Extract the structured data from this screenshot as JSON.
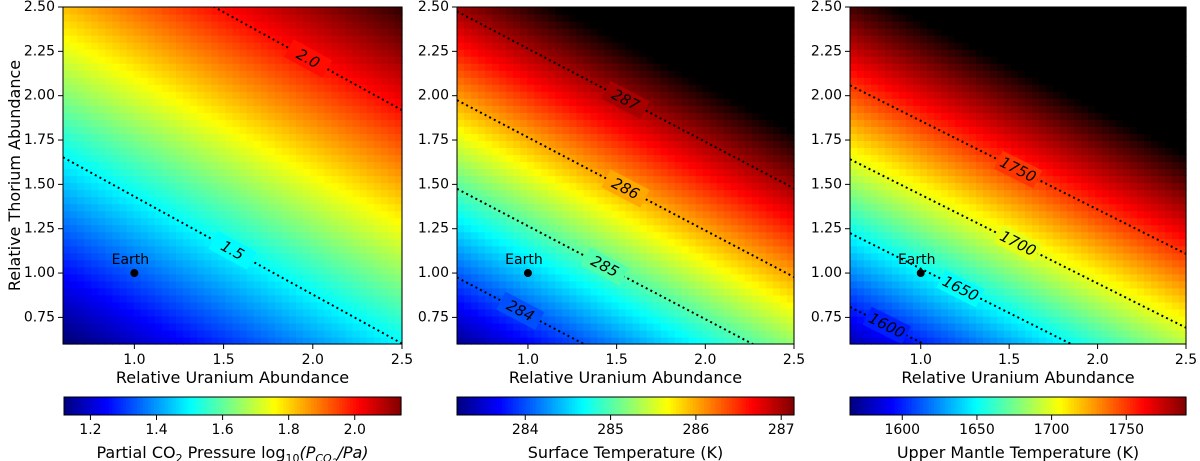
{
  "chart_data": [
    {
      "type": "heatmap",
      "colormap": "jet",
      "xlabel": "Relative Uranium Abundance",
      "ylabel": "Relative Thorium Abundance",
      "xlim": [
        0.6,
        2.5
      ],
      "ylim": [
        0.6,
        2.5
      ],
      "xticks": [
        1.0,
        1.5,
        2.0,
        2.5
      ],
      "yticks": [
        0.75,
        1.0,
        1.25,
        1.5,
        1.75,
        2.0,
        2.25,
        2.5
      ],
      "field": {
        "at_min": 1.1,
        "du": 0.21,
        "dt": 0.38
      },
      "color_range": [
        1.12,
        2.14
      ],
      "contours": [
        {
          "level": 1.5,
          "label": "1.5"
        },
        {
          "level": 2.0,
          "label": "2.0"
        }
      ],
      "colorbar": {
        "label_parts": [
          "Partial CO",
          "2",
          " Pressure log",
          "10",
          "(P",
          "CO",
          "2",
          "/Pa)"
        ],
        "ticks": [
          1.2,
          1.4,
          1.6,
          1.8,
          2.0
        ]
      },
      "earth": {
        "x": 1.0,
        "y": 1.0,
        "label": "Earth"
      }
    },
    {
      "type": "heatmap",
      "colormap": "jet",
      "xlabel": "Relative Uranium Abundance",
      "ylabel": "",
      "xlim": [
        0.6,
        2.5
      ],
      "ylim": [
        0.6,
        2.5
      ],
      "xticks": [
        1.0,
        1.5,
        2.0,
        2.5
      ],
      "yticks": [
        0.75,
        1.0,
        1.25,
        1.5,
        1.75,
        2.0,
        2.25,
        2.5
      ],
      "field": {
        "at_min": 283.25,
        "du": 1.05,
        "dt": 2.0
      },
      "color_range": [
        283.2,
        287.15
      ],
      "contours": [
        {
          "level": 284,
          "label": "284"
        },
        {
          "level": 285,
          "label": "285"
        },
        {
          "level": 286,
          "label": "286"
        },
        {
          "level": 287,
          "label": "287"
        }
      ],
      "colorbar": {
        "label_parts": [
          "Surface Temperature (K)"
        ],
        "ticks": [
          284,
          285,
          286,
          287
        ]
      },
      "earth": {
        "x": 1.0,
        "y": 1.0,
        "label": "Earth"
      }
    },
    {
      "type": "heatmap",
      "colormap": "jet",
      "xlabel": "Relative Uranium Abundance",
      "ylabel": "",
      "xlim": [
        0.6,
        2.5
      ],
      "ylim": [
        0.6,
        2.5
      ],
      "xticks": [
        1.0,
        1.5,
        2.0,
        2.5
      ],
      "yticks": [
        0.75,
        1.0,
        1.25,
        1.5,
        1.75,
        2.0,
        2.25,
        2.5
      ],
      "field": {
        "at_min": 1575,
        "du": 60,
        "dt": 120
      },
      "color_range": [
        1565,
        1790
      ],
      "contours": [
        {
          "level": 1600,
          "label": "1600"
        },
        {
          "level": 1650,
          "label": "1650"
        },
        {
          "level": 1700,
          "label": "1700"
        },
        {
          "level": 1750,
          "label": "1750"
        }
      ],
      "colorbar": {
        "label_parts": [
          "Upper Mantle Temperature (K)"
        ],
        "ticks": [
          1600,
          1650,
          1700,
          1750
        ]
      },
      "earth": {
        "x": 1.0,
        "y": 1.0,
        "label": "Earth"
      }
    }
  ]
}
